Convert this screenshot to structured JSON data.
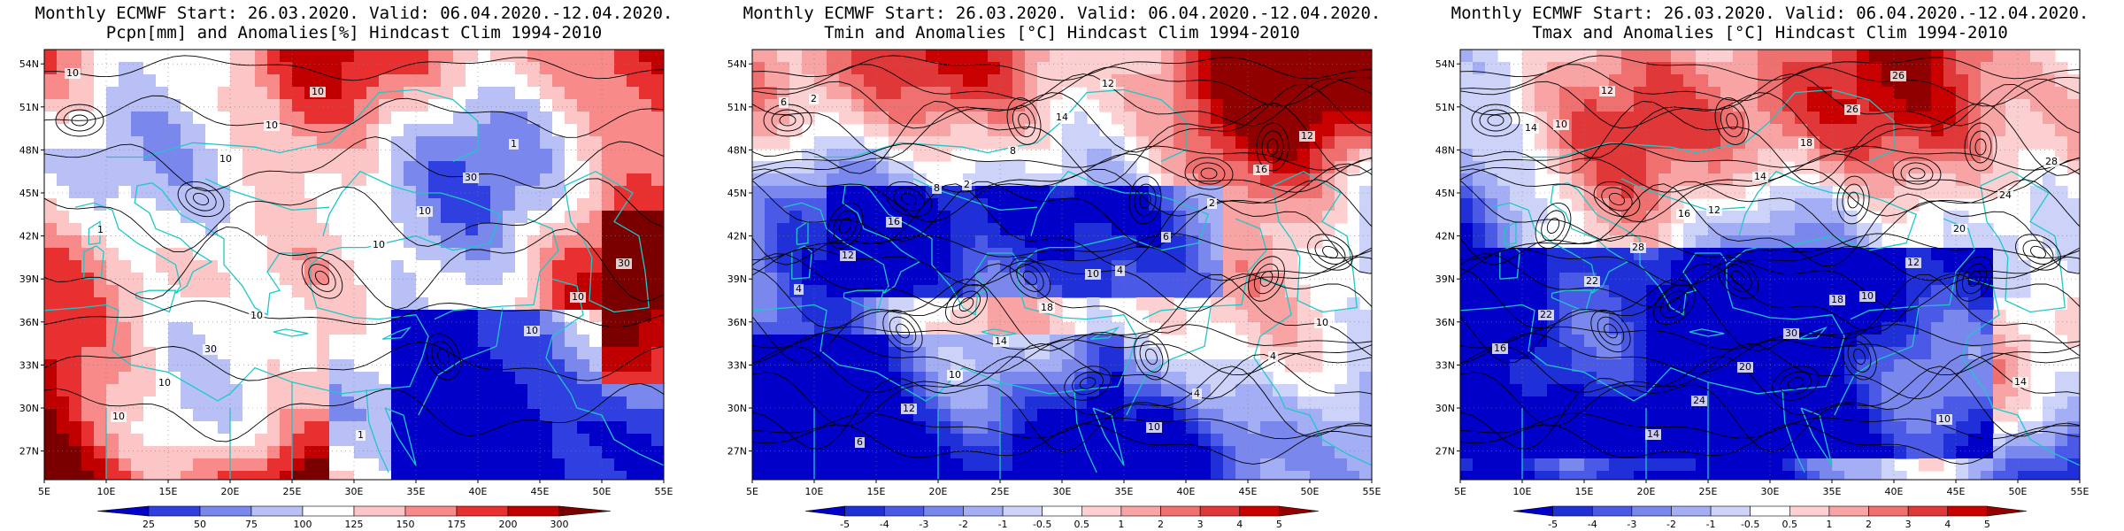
{
  "panels": [
    {
      "id": "pcpn",
      "title_line1": "Monthly ECMWF Start: 26.03.2020. Valid: 06.04.2020.-12.04.2020.",
      "title_line2": "Pcpn[mm] and Anomalies[%] Hindcast Clim 1994-2010",
      "colorbar": [
        "25",
        "50",
        "75",
        "100",
        "125",
        "150",
        "175",
        "200",
        "300"
      ],
      "colors": [
        "#0000c8",
        "#3040e0",
        "#7a88ee",
        "#b8c0f6",
        "#ffffff",
        "#fcc6c6",
        "#f88a8a",
        "#e83030",
        "#c00000",
        "#7a0000"
      ],
      "contour_labels": [
        "10",
        "10",
        "10",
        "10",
        "10",
        "10",
        "10",
        "10",
        "10",
        "10",
        "30",
        "30",
        "30",
        "1",
        "1",
        "1",
        "10"
      ]
    },
    {
      "id": "tmin",
      "title_line1": "Monthly ECMWF Start: 26.03.2020. Valid: 06.04.2020.-12.04.2020.",
      "title_line2": "Tmin and Anomalies [°C] Hindcast Clim 1994-2010",
      "colorbar": [
        "-5",
        "-4",
        "-3",
        "-2",
        "-1",
        "-0.5",
        "0.5",
        "1",
        "2",
        "3",
        "4",
        "5"
      ],
      "colors": [
        "#0000c8",
        "#2030d8",
        "#4a5ae6",
        "#7a88ee",
        "#a4aef4",
        "#cdd2f9",
        "#ffffff",
        "#fcd0d0",
        "#f8a4a4",
        "#f07070",
        "#e03838",
        "#c80000",
        "#900000"
      ],
      "contour_labels": [
        "2",
        "2",
        "4",
        "4",
        "6",
        "8",
        "6",
        "10",
        "12",
        "14",
        "2",
        "4",
        "10",
        "12",
        "16",
        "12",
        "14",
        "10",
        "12",
        "16",
        "18",
        "4",
        "6",
        "8",
        "10"
      ]
    },
    {
      "id": "tmax",
      "title_line1": "Monthly ECMWF Start: 26.03.2020. Valid: 06.04.2020.-12.04.2020.",
      "title_line2": "Tmax and Anomalies [°C] Hindcast Clim 1994-2010",
      "colorbar": [
        "-5",
        "-4",
        "-3",
        "-2",
        "-1",
        "-0.5",
        "0.5",
        "1",
        "2",
        "3",
        "4",
        "5"
      ],
      "colors": [
        "#0000c8",
        "#2030d8",
        "#4a5ae6",
        "#7a88ee",
        "#a4aef4",
        "#cdd2f9",
        "#ffffff",
        "#fcd0d0",
        "#f8a4a4",
        "#f07070",
        "#e03838",
        "#c80000",
        "#900000"
      ],
      "contour_labels": [
        "10",
        "12",
        "10",
        "14",
        "12",
        "14",
        "12",
        "16",
        "14",
        "18",
        "20",
        "22",
        "24",
        "26",
        "24",
        "22",
        "20",
        "26",
        "28",
        "28",
        "30",
        "10",
        "14",
        "16",
        "18"
      ]
    }
  ],
  "axes": {
    "lon_ticks": [
      "5E",
      "10E",
      "15E",
      "20E",
      "25E",
      "30E",
      "35E",
      "40E",
      "45E",
      "50E",
      "55E"
    ],
    "lat_ticks": [
      "54N",
      "51N",
      "48N",
      "45N",
      "42N",
      "39N",
      "36N",
      "33N",
      "30N",
      "27N"
    ]
  }
}
